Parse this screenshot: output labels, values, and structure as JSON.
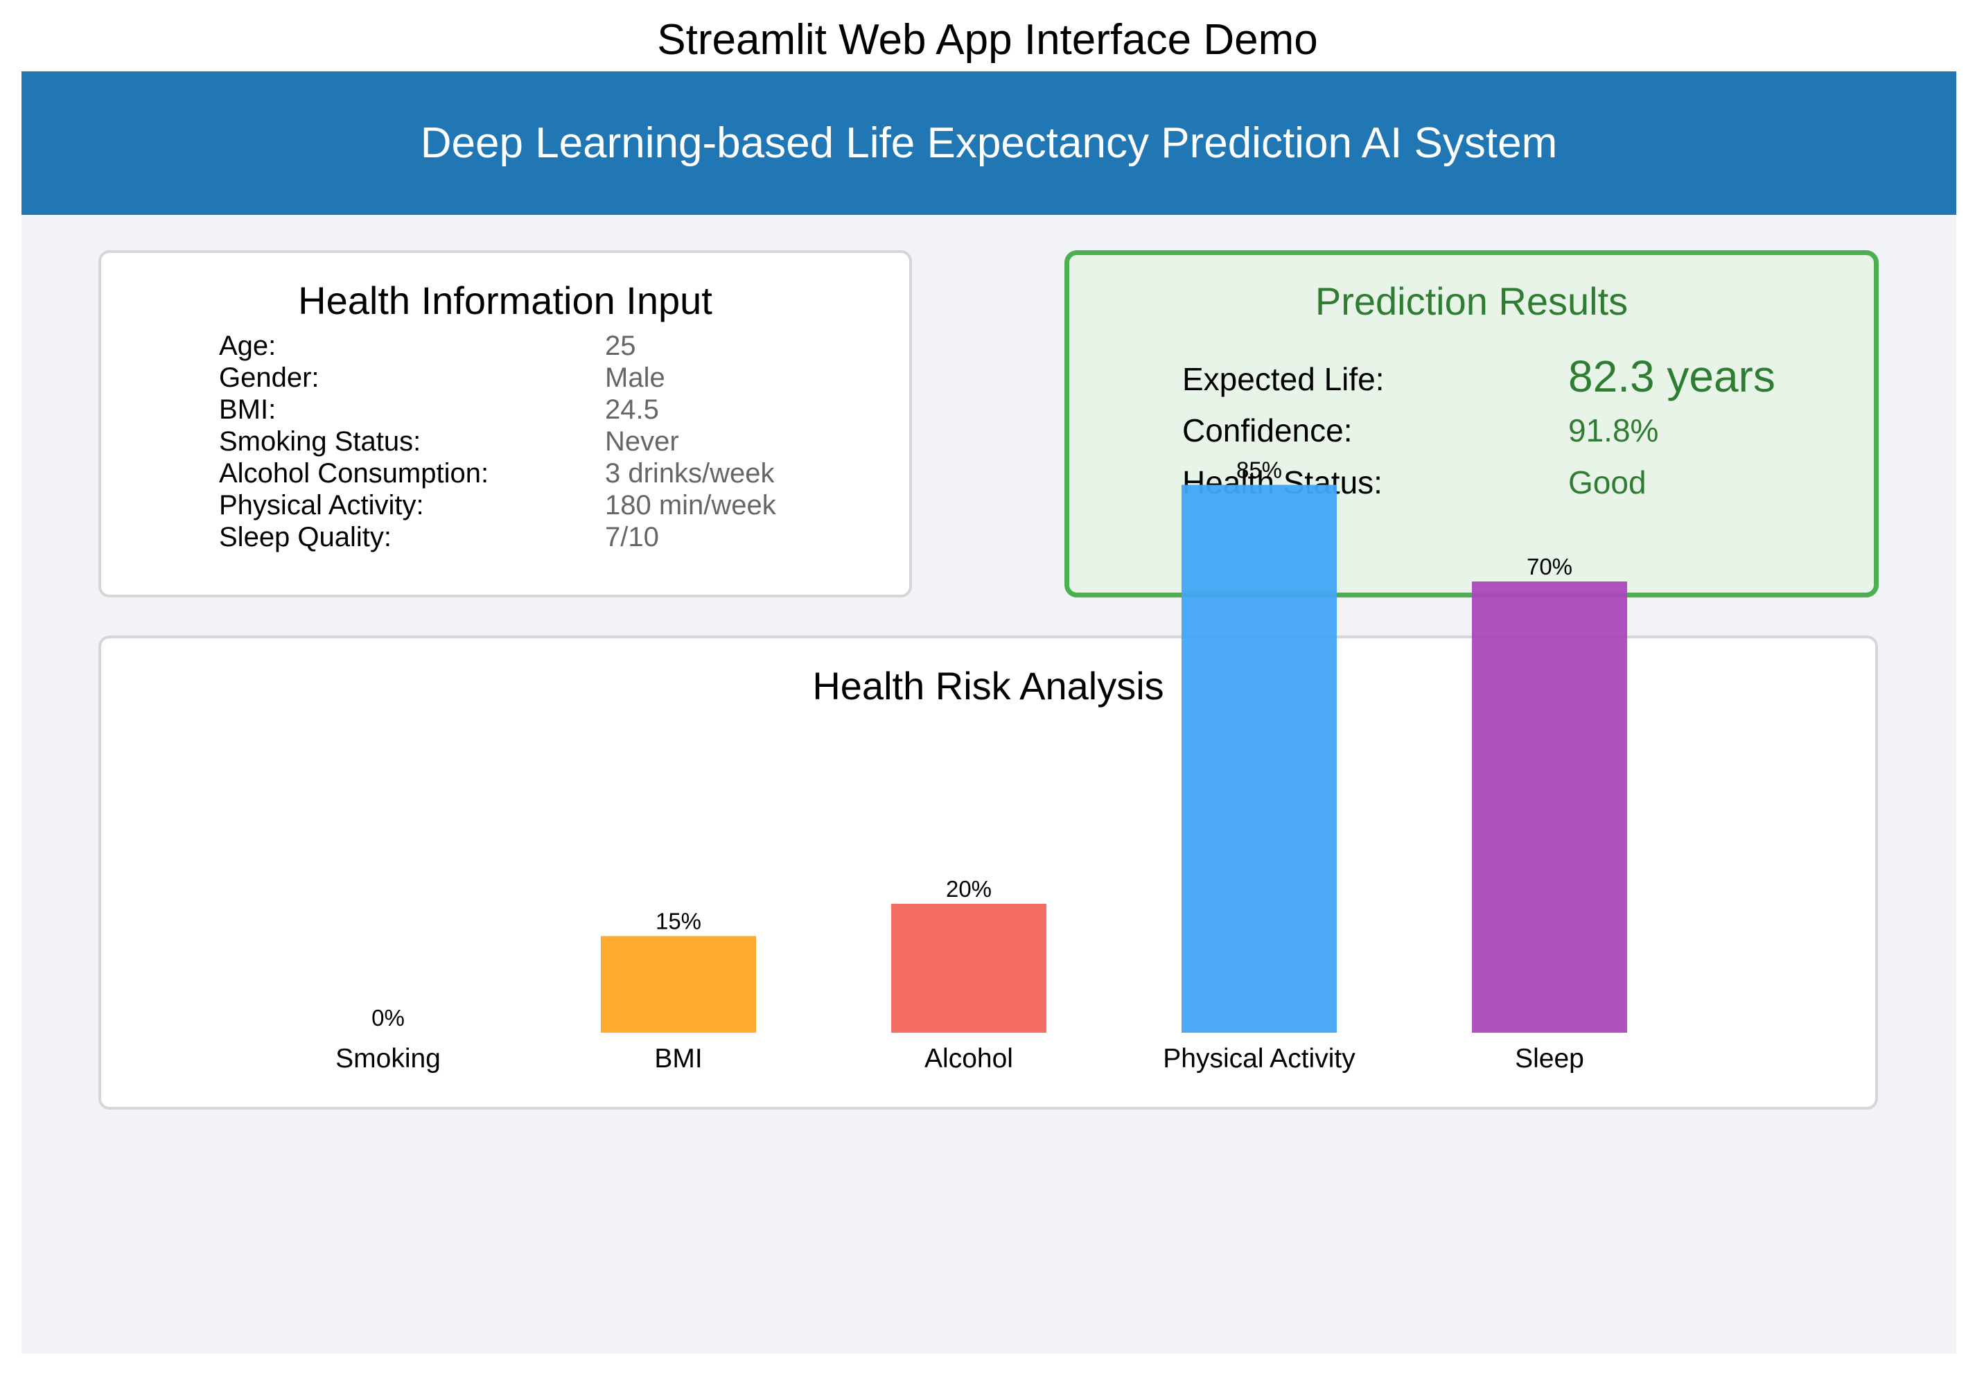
{
  "figure_title": "Streamlit Web App Interface Demo",
  "header": {
    "title": "Deep Learning-based Life Expectancy Prediction AI System"
  },
  "input_card": {
    "title": "Health Information Input",
    "rows": [
      {
        "label": "Age:",
        "value": "25"
      },
      {
        "label": "Gender:",
        "value": "Male"
      },
      {
        "label": "BMI:",
        "value": "24.5"
      },
      {
        "label": "Smoking Status:",
        "value": "Never"
      },
      {
        "label": "Alcohol Consumption:",
        "value": "3 drinks/week"
      },
      {
        "label": "Physical Activity:",
        "value": "180 min/week"
      },
      {
        "label": "Sleep Quality:",
        "value": "7/10"
      }
    ]
  },
  "results_card": {
    "title": "Prediction Results",
    "rows": [
      {
        "label": "Expected Life:",
        "value": "82.3 years"
      },
      {
        "label": "Confidence:",
        "value": "91.8%"
      },
      {
        "label": "Health Status:",
        "value": "Good"
      }
    ]
  },
  "risk_card": {
    "title": "Health Risk Analysis"
  },
  "colors": {
    "header": "#2077b4",
    "results_border": "#4caf50",
    "results_fill": "#e8f4e8",
    "results_text": "#2e7d32"
  },
  "chart_data": {
    "type": "bar",
    "title": "Health Risk Analysis",
    "categories": [
      "Smoking",
      "BMI",
      "Alcohol",
      "Physical Activity",
      "Sleep"
    ],
    "values": [
      0,
      15,
      20,
      85,
      70
    ],
    "value_labels": [
      "0%",
      "15%",
      "20%",
      "85%",
      "70%"
    ],
    "colors": [
      "#f08080",
      "#ffa726",
      "#f4665c",
      "#42a5f5",
      "#ab47bc"
    ],
    "ylim": [
      0,
      100
    ],
    "grid": false,
    "legend": "none"
  }
}
